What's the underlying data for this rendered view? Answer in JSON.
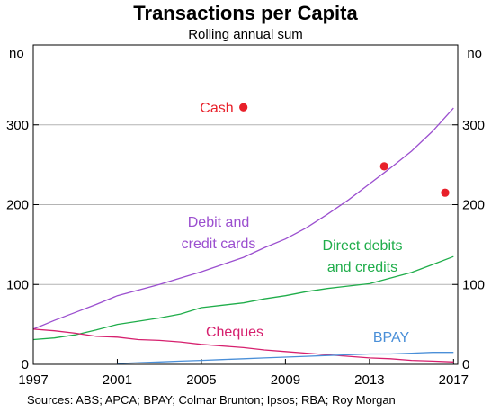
{
  "chart_data": {
    "type": "line",
    "title": "Transactions per Capita",
    "subtitle": "Rolling annual sum",
    "y_unit_left": "no",
    "y_unit_right": "no",
    "xlim": [
      1997,
      2017.2
    ],
    "ylim": [
      0,
      400
    ],
    "x_ticks": [
      "1997",
      "2001",
      "2005",
      "2009",
      "2013",
      "2017"
    ],
    "y_ticks": [
      "0",
      "100",
      "200",
      "300"
    ],
    "grid": true,
    "source": "Sources:   ABS; APCA; BPAY; Colmar Brunton; Ipsos; RBA; Roy Morgan",
    "series": [
      {
        "name": "Debit and credit cards",
        "label_lines": [
          "Debit and",
          "credit cards"
        ],
        "color": "#9b4fcf",
        "x": [
          1997,
          1998,
          1999,
          2000,
          2001,
          2002,
          2003,
          2004,
          2005,
          2006,
          2007,
          2008,
          2009,
          2010,
          2011,
          2012,
          2013,
          2014,
          2015,
          2016,
          2017
        ],
        "values": [
          44,
          55,
          65,
          75,
          86,
          93,
          100,
          108,
          116,
          125,
          134,
          146,
          157,
          171,
          188,
          206,
          226,
          246,
          267,
          292,
          321
        ]
      },
      {
        "name": "Direct debits and credits",
        "label_lines": [
          "Direct debits",
          "and credits"
        ],
        "color": "#1fad4a",
        "x": [
          1997,
          1998,
          1999,
          2000,
          2001,
          2002,
          2003,
          2004,
          2005,
          2006,
          2007,
          2008,
          2009,
          2010,
          2011,
          2012,
          2013,
          2014,
          2015,
          2016,
          2017
        ],
        "values": [
          31,
          33,
          37,
          43,
          50,
          54,
          58,
          63,
          71,
          74,
          77,
          82,
          86,
          91,
          95,
          98,
          101,
          108,
          115,
          125,
          135
        ]
      },
      {
        "name": "Cheques",
        "label_lines": [
          "Cheques"
        ],
        "color": "#d6206e",
        "x": [
          1997,
          1998,
          1999,
          2000,
          2001,
          2002,
          2003,
          2004,
          2005,
          2006,
          2007,
          2008,
          2009,
          2010,
          2011,
          2012,
          2013,
          2014,
          2015,
          2016,
          2017
        ],
        "values": [
          44,
          42,
          39,
          35,
          34,
          31,
          30,
          28,
          25,
          23,
          21,
          18,
          16,
          14,
          12,
          10,
          8,
          7,
          5,
          4,
          3
        ]
      },
      {
        "name": "BPAY",
        "label_lines": [
          "BPAY"
        ],
        "color": "#4a8fd8",
        "x": [
          2001,
          2002,
          2003,
          2004,
          2005,
          2006,
          2007,
          2008,
          2009,
          2010,
          2011,
          2012,
          2013,
          2014,
          2015,
          2016,
          2017
        ],
        "values": [
          1,
          2,
          3,
          4,
          5,
          6,
          7,
          8,
          9,
          10,
          11,
          12,
          13,
          13,
          14,
          15,
          15
        ]
      }
    ],
    "points": {
      "name": "Cash",
      "label": "Cash",
      "color": "#e8202a",
      "x": [
        2007,
        2013.7,
        2016.6
      ],
      "values": [
        322,
        248,
        215
      ]
    }
  }
}
